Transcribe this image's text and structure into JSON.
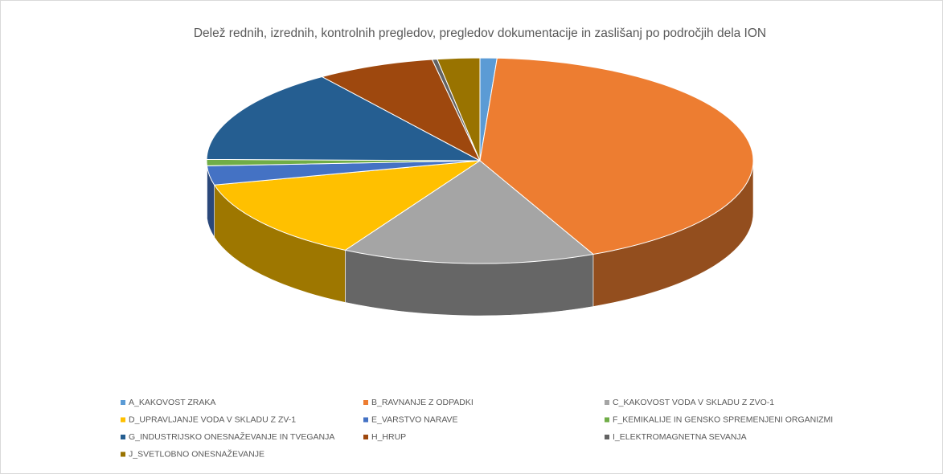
{
  "chart_data": {
    "type": "pie3d",
    "title": "Delež  rednih, izrednih, kontrolnih pregledov, pregledov dokumentacije in zaslišanj po področjih dela ION",
    "categories": [
      "A_KAKOVOST ZRAKA",
      "B_RAVNANJE Z ODPADKI",
      "C_KAKOVOST VODA V SKLADU Z ZVO-1",
      "D_UPRAVLJANJE VODA V SKLADU Z ZV-1",
      "E_VARSTVO NARAVE",
      "F_KEMIKALIJE IN GENSKO SPREMENJENI ORGANIZMI",
      "G_INDUSTRIJSKO ONESNAŽEVANJE IN TVEGANJA",
      "H_HRUP",
      "I_ELEKTROMAGNETNA SEVANJA",
      "J_SVETLOBNO ONESNAŽEVANJE"
    ],
    "values": [
      1,
      42.2,
      15,
      13,
      3,
      1,
      15,
      7,
      0.3,
      2.5
    ],
    "colors": [
      "#5b9bd5",
      "#ed7d31",
      "#a5a5a5",
      "#ffc000",
      "#4472c4",
      "#70ad47",
      "#255e91",
      "#9e480e",
      "#636363",
      "#997300"
    ],
    "legend": "bottom"
  }
}
